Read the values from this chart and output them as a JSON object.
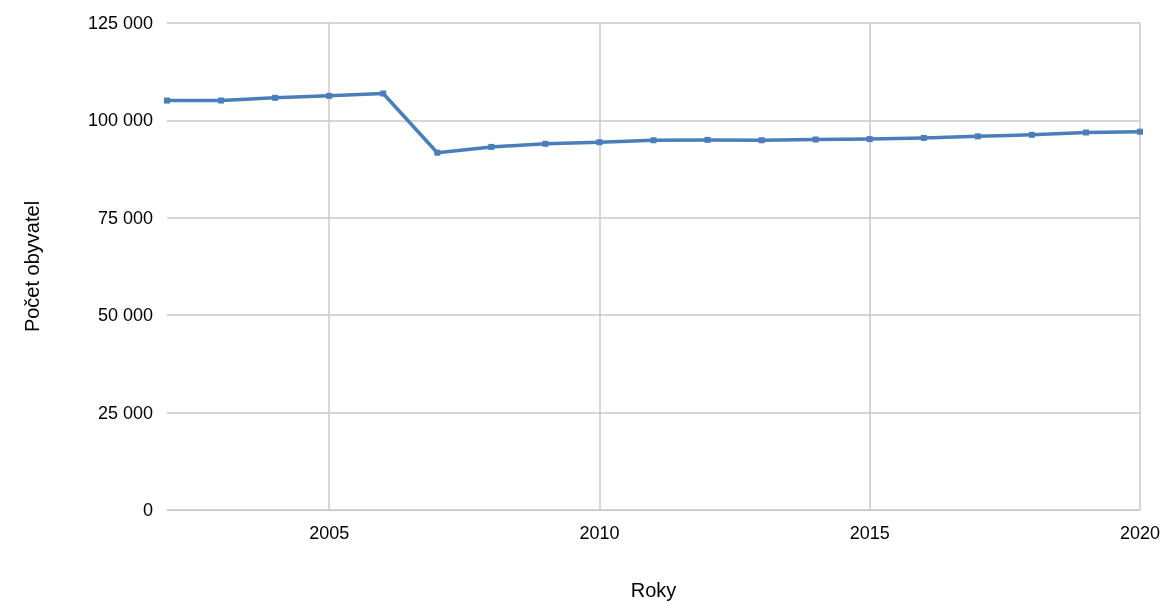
{
  "chart_data": {
    "type": "line",
    "xlabel": "Roky",
    "ylabel": "Počet obyvatel",
    "x": [
      2002,
      2003,
      2004,
      2005,
      2006,
      2007,
      2008,
      2009,
      2010,
      2011,
      2012,
      2013,
      2014,
      2015,
      2016,
      2017,
      2018,
      2019,
      2020
    ],
    "series": [
      {
        "color": "#4a7ebb",
        "values": [
          105100,
          105100,
          105800,
          106300,
          106900,
          91700,
          93200,
          94000,
          94400,
          94900,
          95000,
          94900,
          95100,
          95200,
          95500,
          95900,
          96300,
          96900,
          97100
        ]
      }
    ],
    "xlim": [
      2002,
      2020
    ],
    "xticks": [
      2005,
      2010,
      2015,
      2020
    ],
    "ylim": [
      0,
      125000
    ],
    "yticks": [
      {
        "value": 0,
        "label": "0"
      },
      {
        "value": 25000,
        "label": "25 000"
      },
      {
        "value": 50000,
        "label": "50 000"
      },
      {
        "value": 75000,
        "label": "75 000"
      },
      {
        "value": 100000,
        "label": "100 000"
      },
      {
        "value": 125000,
        "label": "125 000"
      }
    ],
    "grid": true,
    "marker": "square",
    "line_style": "solid"
  }
}
